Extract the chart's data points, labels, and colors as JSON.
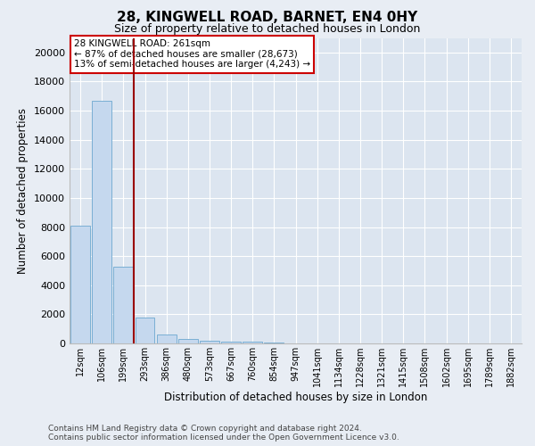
{
  "title": "28, KINGWELL ROAD, BARNET, EN4 0HY",
  "subtitle": "Size of property relative to detached houses in London",
  "xlabel": "Distribution of detached houses by size in London",
  "ylabel": "Number of detached properties",
  "footer_line1": "Contains HM Land Registry data © Crown copyright and database right 2024.",
  "footer_line2": "Contains public sector information licensed under the Open Government Licence v3.0.",
  "categories": [
    "12sqm",
    "106sqm",
    "199sqm",
    "293sqm",
    "386sqm",
    "480sqm",
    "573sqm",
    "667sqm",
    "760sqm",
    "854sqm",
    "947sqm",
    "1041sqm",
    "1134sqm",
    "1228sqm",
    "1321sqm",
    "1415sqm",
    "1508sqm",
    "1602sqm",
    "1695sqm",
    "1789sqm",
    "1882sqm"
  ],
  "values": [
    8100,
    16700,
    5300,
    1750,
    600,
    300,
    200,
    150,
    110,
    80,
    0,
    0,
    0,
    0,
    0,
    0,
    0,
    0,
    0,
    0,
    0
  ],
  "bar_color": "#c5d8ee",
  "bar_edge_color": "#7aafd4",
  "vline_position": 2.5,
  "vline_color": "#990000",
  "annotation_text": "28 KINGWELL ROAD: 261sqm\n← 87% of detached houses are smaller (28,673)\n13% of semi-detached houses are larger (4,243) →",
  "annotation_box_color": "#ffffff",
  "annotation_box_edge_color": "#cc0000",
  "ylim": [
    0,
    21000
  ],
  "yticks": [
    0,
    2000,
    4000,
    6000,
    8000,
    10000,
    12000,
    14000,
    16000,
    18000,
    20000
  ],
  "bg_color": "#e8edf4",
  "plot_bg_color": "#dce5f0",
  "grid_color": "#ffffff",
  "title_fontsize": 11,
  "subtitle_fontsize": 9,
  "ylabel_fontsize": 8.5,
  "xlabel_fontsize": 8.5,
  "ytick_fontsize": 8,
  "xtick_fontsize": 7,
  "annotation_fontsize": 7.5,
  "footer_fontsize": 6.5
}
